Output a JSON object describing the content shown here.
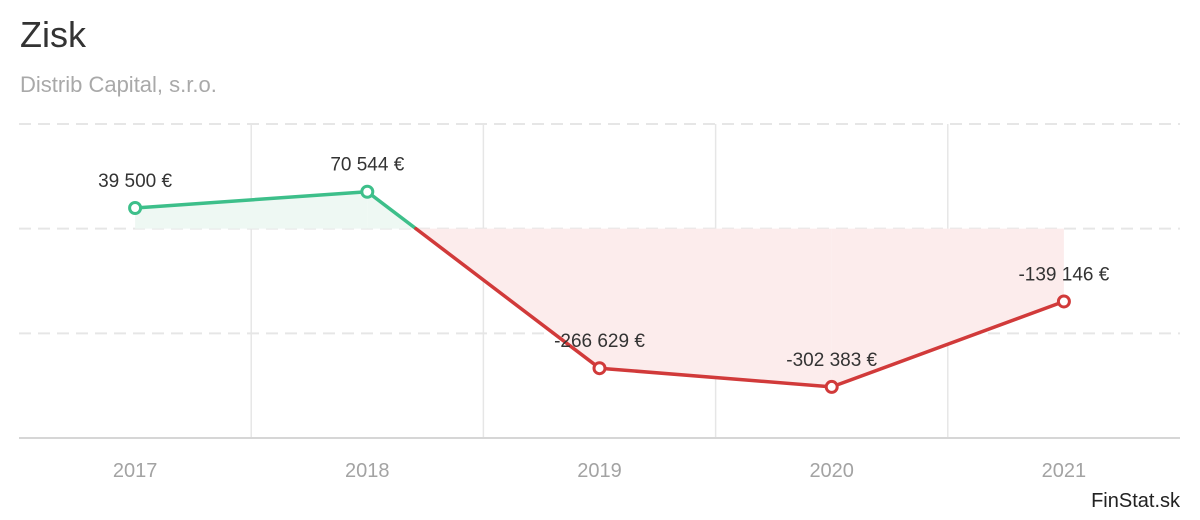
{
  "title": "Zisk",
  "subtitle": "Distrib Capital, s.r.o.",
  "credits": "FinStat.sk",
  "colors": {
    "positive": "#3dbf8a",
    "negative": "#d13a3a",
    "positive_fill": "#eef8f3",
    "negative_fill": "#fcecec",
    "grid": "#e6e6e6",
    "tick_text": "#a3a3a3",
    "label_text": "#333333"
  },
  "chart_data": {
    "type": "line",
    "title": "Zisk",
    "subtitle": "Distrib Capital, s.r.o.",
    "categories": [
      "2017",
      "2018",
      "2019",
      "2020",
      "2021"
    ],
    "series": [
      {
        "values": [
          39500,
          70544,
          -266629,
          -302383,
          -139146
        ],
        "labels": [
          "39 500 €",
          "70 544 €",
          "-266 629 €",
          "-302 383 €",
          "-139 146 €"
        ]
      }
    ],
    "ylim": [
      -400000,
      200000
    ],
    "threshold": 0,
    "grid": true,
    "legend": "none"
  }
}
